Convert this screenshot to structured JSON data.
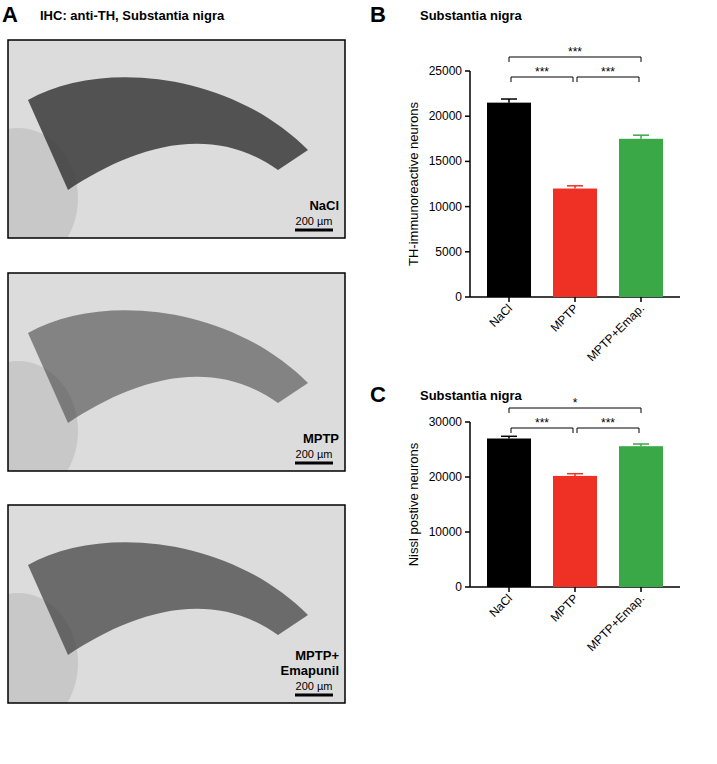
{
  "panel_a": {
    "panel_label": "A",
    "title": "IHC: anti-TH, Substantia nigra",
    "images": [
      {
        "label": [
          "NaCl"
        ],
        "scale_bar": "200 µm"
      },
      {
        "label": [
          "MPTP"
        ],
        "scale_bar": "200 µm"
      },
      {
        "label": [
          "MPTP+",
          "Emapunil"
        ],
        "scale_bar": "200 µm"
      }
    ]
  },
  "chart_data": [
    {
      "type": "bar",
      "panel_label": "B",
      "title": "Substantia nigra",
      "y_label": "TH-immunoreactive neurons",
      "categories": [
        "NaCl",
        "MPTP",
        "MPTP+Emap."
      ],
      "values": [
        21500,
        12000,
        17500
      ],
      "errors": [
        400,
        300,
        400
      ],
      "colors": [
        "#000000",
        "#ee3124",
        "#3aa846"
      ],
      "ylim": [
        0,
        25000
      ],
      "yticks": [
        0,
        5000,
        10000,
        15000,
        20000,
        25000
      ],
      "significance": [
        {
          "between": [
            "NaCl",
            "MPTP+Emap."
          ],
          "label": "***"
        },
        {
          "between": [
            "NaCl",
            "MPTP"
          ],
          "label": "***"
        },
        {
          "between": [
            "MPTP",
            "MPTP+Emap."
          ],
          "label": "***"
        }
      ]
    },
    {
      "type": "bar",
      "panel_label": "C",
      "title": "Substantia nigra",
      "y_label": "Nissl postive neurons",
      "categories": [
        "NaCl",
        "MPTP",
        "MPTP+Emap."
      ],
      "values": [
        27000,
        20200,
        25600
      ],
      "errors": [
        400,
        400,
        400
      ],
      "colors": [
        "#000000",
        "#ee3124",
        "#3aa846"
      ],
      "ylim": [
        0,
        30000
      ],
      "yticks": [
        0,
        10000,
        20000,
        30000
      ],
      "significance": [
        {
          "between": [
            "NaCl",
            "MPTP+Emap."
          ],
          "label": "*"
        },
        {
          "between": [
            "NaCl",
            "MPTP"
          ],
          "label": "***"
        },
        {
          "between": [
            "MPTP",
            "MPTP+Emap."
          ],
          "label": "***"
        }
      ]
    }
  ]
}
